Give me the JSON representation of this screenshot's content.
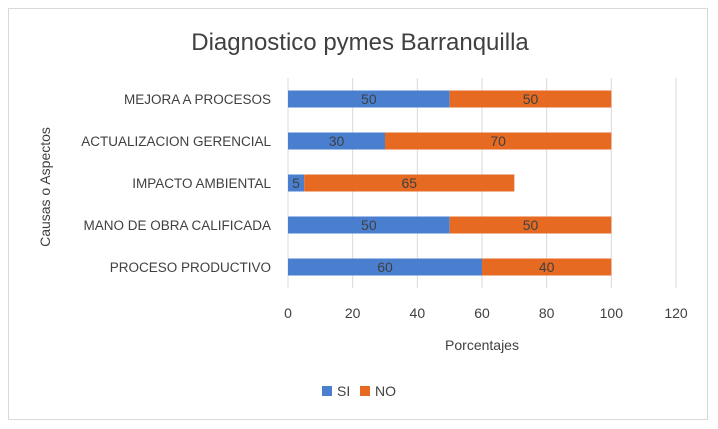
{
  "chart_data": {
    "type": "bar",
    "orientation": "horizontal",
    "stacked": true,
    "title": "Diagnostico pymes Barranquilla",
    "xlabel": "Porcentajes",
    "ylabel": "Causas o Aspectos",
    "xlim": [
      0,
      120
    ],
    "xticks": [
      0,
      20,
      40,
      60,
      80,
      100,
      120
    ],
    "grid": true,
    "legend_position": "bottom",
    "categories": [
      "MEJORA A PROCESOS",
      "ACTUALIZACION GERENCIAL",
      "IMPACTO AMBIENTAL",
      "MANO DE OBRA CALIFICADA",
      "PROCESO PRODUCTIVO"
    ],
    "series": [
      {
        "name": "SI",
        "color": "#4a7fd0",
        "values": [
          50,
          30,
          5,
          50,
          60
        ]
      },
      {
        "name": "NO",
        "color": "#e66a22",
        "values": [
          50,
          70,
          65,
          50,
          40
        ]
      }
    ]
  }
}
